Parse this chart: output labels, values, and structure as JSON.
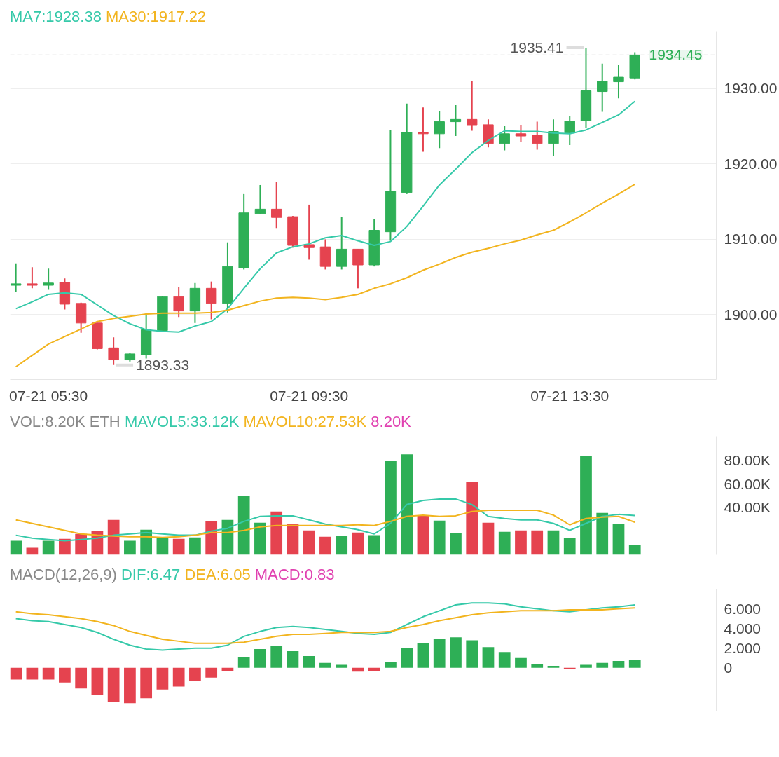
{
  "chart_data": [
    {
      "type": "candlestick",
      "categories": [
        null,
        null,
        "07-21 05:30",
        null,
        null,
        null,
        null,
        null,
        null,
        null,
        null,
        null,
        null,
        null,
        null,
        null,
        null,
        null,
        "07-21 09:30",
        null,
        null,
        null,
        null,
        null,
        null,
        null,
        null,
        null,
        null,
        null,
        null,
        null,
        null,
        null,
        "07-21 13:30",
        null,
        null,
        null,
        null
      ],
      "ohlc": [
        [
          1903.9,
          1906.8,
          1903.0,
          1904.1
        ],
        [
          1904.1,
          1906.3,
          1903.5,
          1903.9
        ],
        [
          1903.9,
          1906.1,
          1903.3,
          1904.2
        ],
        [
          1904.3,
          1904.8,
          1900.7,
          1901.4
        ],
        [
          1901.5,
          1901.6,
          1897.6,
          1898.9
        ],
        [
          1898.9,
          1898.9,
          1895.4,
          1895.5
        ],
        [
          1895.6,
          1897.0,
          1893.33,
          1894.0
        ],
        [
          1894.0,
          1894.9,
          1893.8,
          1894.8
        ],
        [
          1894.7,
          1900.2,
          1894.2,
          1898.0
        ],
        [
          1897.9,
          1902.5,
          1897.9,
          1902.4
        ],
        [
          1902.4,
          1903.7,
          1899.7,
          1900.5
        ],
        [
          1900.5,
          1904.2,
          1898.9,
          1903.5
        ],
        [
          1903.5,
          1904.4,
          1899.4,
          1901.5
        ],
        [
          1901.5,
          1909.6,
          1900.3,
          1906.4
        ],
        [
          1906.2,
          1916.0,
          1906.0,
          1913.5
        ],
        [
          1913.4,
          1917.2,
          1913.4,
          1914.0
        ],
        [
          1914.0,
          1917.6,
          1911.5,
          1912.9
        ],
        [
          1913.0,
          1913.1,
          1908.9,
          1909.2
        ],
        [
          1909.3,
          1914.6,
          1907.3,
          1908.9
        ],
        [
          1909.0,
          1910.0,
          1906.0,
          1906.4
        ],
        [
          1906.4,
          1913.0,
          1906.0,
          1908.7
        ],
        [
          1908.7,
          1908.7,
          1903.5,
          1906.6
        ],
        [
          1906.6,
          1912.7,
          1906.4,
          1911.2
        ],
        [
          1911.0,
          1924.5,
          1909.8,
          1916.4
        ],
        [
          1916.2,
          1928.0,
          1916.0,
          1924.2
        ],
        [
          1924.2,
          1927.5,
          1921.6,
          1924.0
        ],
        [
          1924.0,
          1927.0,
          1922.1,
          1925.6
        ],
        [
          1925.6,
          1927.8,
          1923.7,
          1925.9
        ],
        [
          1925.9,
          1931.0,
          1924.4,
          1925.1
        ],
        [
          1925.2,
          1925.9,
          1922.2,
          1922.7
        ],
        [
          1922.7,
          1925.0,
          1921.8,
          1924.0
        ],
        [
          1924.0,
          1925.2,
          1922.9,
          1923.7
        ],
        [
          1923.8,
          1925.6,
          1921.9,
          1922.7
        ],
        [
          1922.7,
          1925.9,
          1921.0,
          1924.3
        ],
        [
          1924.1,
          1926.4,
          1922.5,
          1925.7
        ],
        [
          1925.7,
          1935.41,
          1924.8,
          1929.7
        ],
        [
          1929.6,
          1933.3,
          1926.9,
          1931.0
        ],
        [
          1930.9,
          1933.1,
          1928.7,
          1931.5
        ],
        [
          1931.4,
          1934.8,
          1931.2,
          1934.45
        ]
      ],
      "colors": [
        "#2eaf56",
        "#e5434f",
        "#2eaf56",
        "#e5434f",
        "#e5434f",
        "#e5434f",
        "#e5434f",
        "#2eaf56",
        "#2eaf56",
        "#2eaf56",
        "#e5434f",
        "#2eaf56",
        "#e5434f",
        "#2eaf56",
        "#2eaf56",
        "#2eaf56",
        "#e5434f",
        "#e5434f",
        "#e5434f",
        "#e5434f",
        "#2eaf56",
        "#e5434f",
        "#2eaf56",
        "#2eaf56",
        "#2eaf56",
        "#e5434f",
        "#2eaf56",
        "#2eaf56",
        "#e5434f",
        "#e5434f",
        "#2eaf56",
        "#e5434f",
        "#e5434f",
        "#2eaf56",
        "#2eaf56",
        "#2eaf56",
        "#2eaf56",
        "#2eaf56",
        "#2eaf56"
      ],
      "series": [
        {
          "type": "line",
          "name": "MA7:1928.38",
          "color": "#35c9a9",
          "values": [
            1900.8,
            1901.7,
            1902.7,
            1902.9,
            1902.7,
            1901.3,
            1899.9,
            1898.8,
            1898.0,
            1897.8,
            1897.7,
            1898.5,
            1899.1,
            1900.8,
            1903.5,
            1906.1,
            1908.2,
            1909.0,
            1909.4,
            1910.2,
            1910.5,
            1909.8,
            1909.2,
            1909.7,
            1911.7,
            1914.4,
            1917.2,
            1919.3,
            1921.5,
            1923.1,
            1924.4,
            1924.3,
            1924.3,
            1924.1,
            1924.0,
            1924.5,
            1925.5,
            1926.5,
            1928.3
          ]
        },
        {
          "type": "line",
          "name": "MA30:1917.22",
          "color": "#f2b41e",
          "values": [
            1893.1,
            1894.6,
            1896.1,
            1897.1,
            1898.1,
            1899.1,
            1899.5,
            1899.8,
            1900.1,
            1900.2,
            1900.2,
            1900.2,
            1900.3,
            1900.6,
            1901.2,
            1901.8,
            1902.2,
            1902.3,
            1902.2,
            1902.0,
            1902.3,
            1902.7,
            1903.5,
            1904.1,
            1904.9,
            1905.9,
            1906.7,
            1907.6,
            1908.3,
            1908.8,
            1909.4,
            1909.9,
            1910.6,
            1911.2,
            1912.3,
            1913.5,
            1914.8,
            1916.0,
            1917.3
          ]
        }
      ],
      "ylim": [
        1891.4,
        1937.6
      ],
      "yticks": [
        {
          "value": 1900,
          "label": "1900.00"
        },
        {
          "value": 1910,
          "label": "1910.00"
        },
        {
          "value": 1920,
          "label": "1920.00"
        },
        {
          "value": 1930,
          "label": "1930.00"
        }
      ],
      "ref_lines": [
        {
          "axis": "y",
          "value": 1934.45,
          "label": "1934.45",
          "color": "#aaaaaa",
          "line_style": "dashed"
        }
      ],
      "annotations": [
        "1935.41",
        "1893.33"
      ],
      "grid": "y",
      "legend": "top left"
    },
    {
      "type": "bar",
      "title": "VOL:8.20K ETH",
      "categories": [
        null,
        null,
        null,
        null,
        null,
        null,
        null,
        null,
        null,
        null,
        null,
        null,
        null,
        null,
        null,
        null,
        null,
        null,
        null,
        null,
        null,
        null,
        null,
        null,
        null,
        null,
        null,
        null,
        null,
        null,
        null,
        null,
        null,
        null,
        null,
        null,
        null,
        null,
        null
      ],
      "series": [
        {
          "type": "bar",
          "values": [
            11.8,
            5.9,
            11.8,
            13.5,
            17.6,
            20.0,
            29.4,
            11.8,
            21.2,
            14.1,
            13.5,
            14.7,
            28.2,
            29.4,
            49.4,
            27.0,
            36.5,
            25.9,
            20.6,
            15.3,
            15.9,
            18.8,
            16.5,
            79.4,
            84.7,
            32.9,
            28.8,
            18.2,
            61.2,
            27.0,
            19.4,
            20.6,
            20.6,
            20.6,
            14.1,
            83.5,
            35.3,
            25.9,
            8.2
          ],
          "colors": [
            "#2eaf56",
            "#e5434f",
            "#2eaf56",
            "#e5434f",
            "#e5434f",
            "#e5434f",
            "#e5434f",
            "#2eaf56",
            "#2eaf56",
            "#2eaf56",
            "#e5434f",
            "#2eaf56",
            "#e5434f",
            "#2eaf56",
            "#2eaf56",
            "#2eaf56",
            "#e5434f",
            "#e5434f",
            "#e5434f",
            "#e5434f",
            "#2eaf56",
            "#e5434f",
            "#2eaf56",
            "#2eaf56",
            "#2eaf56",
            "#e5434f",
            "#2eaf56",
            "#2eaf56",
            "#e5434f",
            "#e5434f",
            "#2eaf56",
            "#e5434f",
            "#e5434f",
            "#2eaf56",
            "#2eaf56",
            "#2eaf56",
            "#2eaf56",
            "#2eaf56",
            "#2eaf56"
          ]
        },
        {
          "type": "line",
          "name": "MAVOL5:33.12K",
          "color": "#35c9a9",
          "values": [
            16.5,
            14.1,
            12.9,
            11.8,
            12.9,
            14.1,
            16.5,
            17.6,
            18.8,
            17.6,
            16.5,
            16.5,
            20.0,
            22.4,
            28.2,
            32.4,
            32.9,
            32.9,
            29.4,
            25.9,
            23.5,
            21.2,
            17.6,
            26.5,
            42.4,
            45.9,
            47.1,
            47.1,
            42.4,
            32.4,
            30.6,
            29.4,
            29.4,
            26.5,
            20.6,
            26.5,
            32.4,
            34.1,
            33.1
          ]
        },
        {
          "type": "line",
          "name": "MAVOL10:27.53K",
          "color": "#f2b41e",
          "values": [
            29.4,
            26.5,
            23.5,
            20.6,
            17.6,
            16.5,
            15.9,
            15.3,
            15.3,
            14.7,
            15.3,
            16.5,
            18.8,
            18.8,
            20.6,
            23.5,
            24.7,
            24.7,
            24.7,
            24.7,
            24.7,
            25.3,
            24.7,
            28.2,
            32.4,
            33.5,
            32.4,
            32.9,
            36.5,
            37.6,
            37.6,
            37.6,
            37.6,
            33.5,
            25.3,
            30.6,
            31.8,
            32.4,
            27.5
          ]
        }
      ],
      "ylim": [
        0,
        100
      ],
      "yticks": [
        {
          "value": 40,
          "label": "40.00K"
        },
        {
          "value": 60,
          "label": "60.00K"
        },
        {
          "value": 80,
          "label": "80.00K"
        }
      ],
      "annotations": [
        "8.20K"
      ],
      "tick_labels": "y",
      "legend": "top left"
    },
    {
      "type": "bar",
      "title": "MACD(12,26,9)",
      "categories": [
        null,
        null,
        null,
        null,
        null,
        null,
        null,
        null,
        null,
        null,
        null,
        null,
        null,
        null,
        null,
        null,
        null,
        null,
        null,
        null,
        null,
        null,
        null,
        null,
        null,
        null,
        null,
        null,
        null,
        null,
        null,
        null,
        null,
        null,
        null,
        null,
        null,
        null,
        null
      ],
      "series": [
        {
          "type": "bar",
          "values": [
            -1.2,
            -1.2,
            -1.2,
            -1.5,
            -2.1,
            -2.8,
            -3.5,
            -3.6,
            -3.1,
            -2.2,
            -1.9,
            -1.3,
            -1.0,
            -0.35,
            1.1,
            1.9,
            2.2,
            1.7,
            1.2,
            0.5,
            0.3,
            -0.4,
            -0.3,
            0.6,
            2.0,
            2.5,
            2.9,
            3.1,
            2.8,
            2.1,
            1.6,
            1.0,
            0.4,
            0.2,
            -0.15,
            0.3,
            0.5,
            0.7,
            0.83
          ],
          "colors": [
            "#e5434f",
            "#e5434f",
            "#e5434f",
            "#e5434f",
            "#e5434f",
            "#e5434f",
            "#e5434f",
            "#e5434f",
            "#e5434f",
            "#e5434f",
            "#e5434f",
            "#e5434f",
            "#e5434f",
            "#e5434f",
            "#2eaf56",
            "#2eaf56",
            "#2eaf56",
            "#2eaf56",
            "#2eaf56",
            "#2eaf56",
            "#2eaf56",
            "#e5434f",
            "#e5434f",
            "#2eaf56",
            "#2eaf56",
            "#2eaf56",
            "#2eaf56",
            "#2eaf56",
            "#2eaf56",
            "#2eaf56",
            "#2eaf56",
            "#2eaf56",
            "#2eaf56",
            "#2eaf56",
            "#e5434f",
            "#2eaf56",
            "#2eaf56",
            "#2eaf56",
            "#2eaf56"
          ]
        },
        {
          "type": "line",
          "name": "DIF:6.47",
          "color": "#35c9a9",
          "values": [
            5.0,
            4.8,
            4.7,
            4.4,
            4.1,
            3.6,
            2.9,
            2.3,
            1.9,
            1.8,
            1.9,
            2.0,
            2.0,
            2.3,
            3.2,
            3.7,
            4.1,
            4.2,
            4.1,
            3.9,
            3.7,
            3.5,
            3.4,
            3.6,
            4.4,
            5.2,
            5.8,
            6.4,
            6.6,
            6.6,
            6.5,
            6.2,
            6.0,
            5.8,
            5.7,
            5.9,
            6.1,
            6.2,
            6.4
          ]
        },
        {
          "type": "line",
          "name": "DEA:6.05",
          "color": "#f2b41e",
          "values": [
            5.7,
            5.5,
            5.4,
            5.2,
            5.0,
            4.7,
            4.3,
            3.7,
            3.3,
            2.9,
            2.7,
            2.5,
            2.5,
            2.5,
            2.6,
            2.9,
            3.2,
            3.4,
            3.4,
            3.5,
            3.6,
            3.6,
            3.6,
            3.7,
            4.1,
            4.4,
            4.8,
            5.1,
            5.4,
            5.6,
            5.7,
            5.8,
            5.8,
            5.8,
            5.9,
            5.9,
            5.9,
            6.0,
            6.1
          ]
        }
      ],
      "ylim": [
        -4.4,
        8.0
      ],
      "yticks": [
        0,
        {
          "value": 2,
          "label": "2.000"
        },
        {
          "value": 4,
          "label": "4.000"
        },
        {
          "value": 6,
          "label": "6.000"
        }
      ],
      "annotations": [
        "MACD:0.83"
      ],
      "tick_labels": "y",
      "legend": "top left"
    }
  ]
}
